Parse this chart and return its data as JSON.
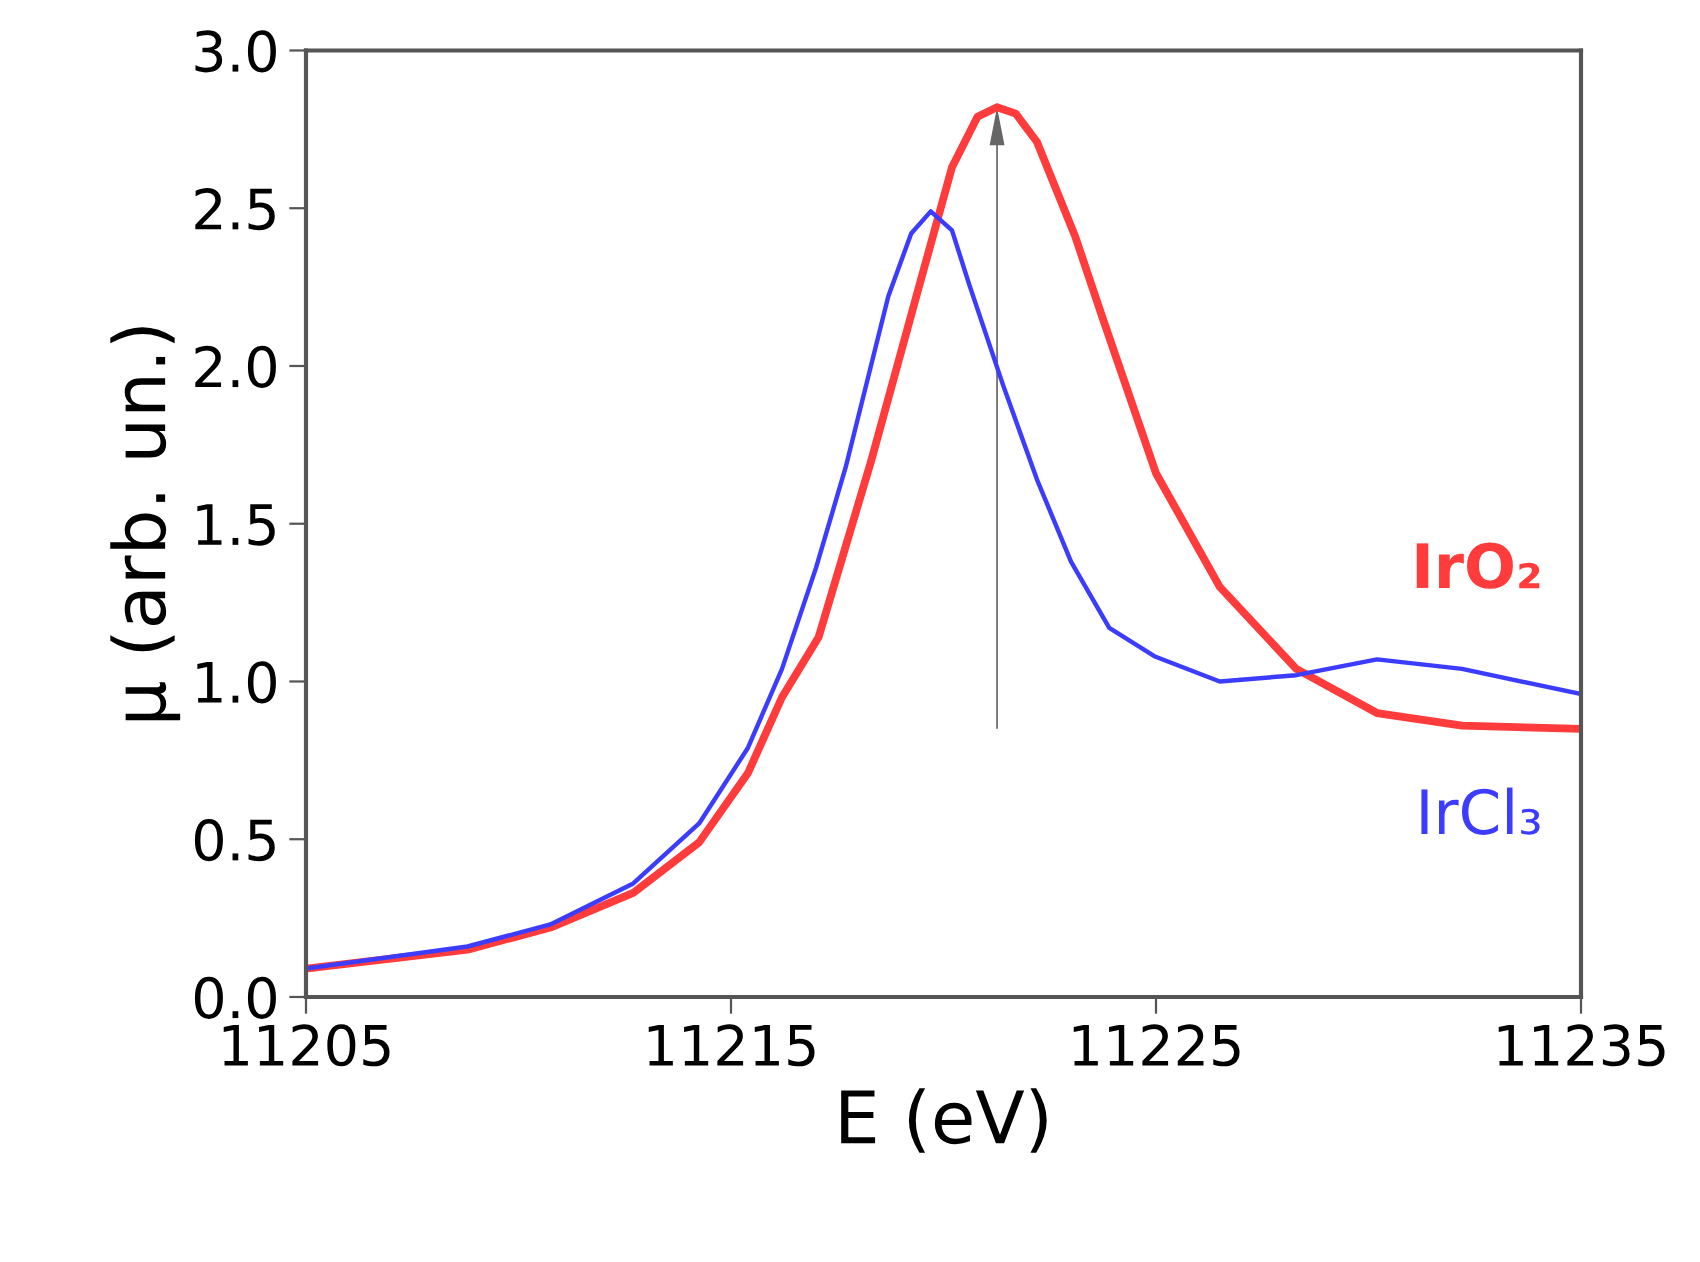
{
  "chart_data": {
    "type": "line",
    "xlabel": "E (eV)",
    "ylabel": "μ (arb. un.)",
    "xlim": [
      11205,
      11235
    ],
    "xticks": [
      11205,
      11215,
      11225,
      11235
    ],
    "ylim": [
      0,
      3
    ],
    "yticks": [
      {
        "value": 0,
        "label": "0.0"
      },
      {
        "value": 0.5,
        "label": "0.5"
      },
      {
        "value": 1,
        "label": "1.0"
      },
      {
        "value": 1.5,
        "label": "1.5"
      },
      {
        "value": 2,
        "label": "2.0"
      },
      {
        "value": 2.5,
        "label": "2.5"
      },
      {
        "value": 3,
        "label": "3.0"
      }
    ],
    "grid": false,
    "legend": false,
    "marker": "none",
    "line_style": "solid",
    "series": [
      {
        "name": "IrO₂",
        "color": "#ff3b3b",
        "x": [
          11205,
          11208.8,
          11210.75,
          11212.7,
          11214.25,
          11215.4,
          11216.2,
          11217.06,
          11218.3,
          11219.4,
          11220.2,
          11220.8,
          11221.26,
          11221.7,
          11222.2,
          11223.1,
          11223.75,
          11225.0,
          11226.5,
          11228.3,
          11230.2,
          11232.2,
          11235
        ],
        "values": [
          0.09,
          0.15,
          0.22,
          0.33,
          0.49,
          0.71,
          0.95,
          1.14,
          1.7,
          2.24,
          2.63,
          2.79,
          2.82,
          2.8,
          2.71,
          2.41,
          2.15,
          1.66,
          1.3,
          1.04,
          0.9,
          0.86,
          0.85
        ]
      },
      {
        "name": "IrCl₃",
        "color": "#3c3cff",
        "x": [
          11205,
          11208.8,
          11210.75,
          11212.7,
          11214.25,
          11215.4,
          11216.2,
          11217.0,
          11217.7,
          11218.7,
          11219.24,
          11219.7,
          11220.2,
          11220.6,
          11221.4,
          11222.2,
          11223.0,
          11223.9,
          11224.96,
          11226.5,
          11228.3,
          11230.2,
          11232.2,
          11235
        ],
        "values": [
          0.09,
          0.16,
          0.23,
          0.36,
          0.55,
          0.79,
          1.04,
          1.36,
          1.68,
          2.22,
          2.42,
          2.49,
          2.43,
          2.26,
          1.94,
          1.64,
          1.38,
          1.17,
          1.08,
          1.0,
          1.02,
          1.07,
          1.04,
          0.96
        ]
      }
    ]
  }
}
